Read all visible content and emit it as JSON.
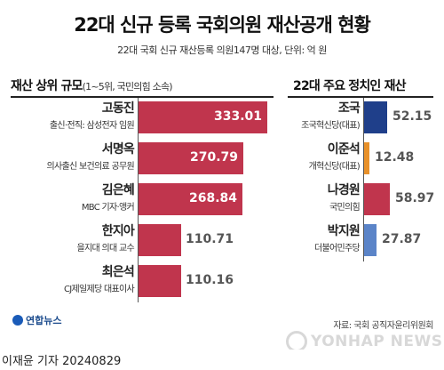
{
  "title": "22대 신규 등록 국회의원 재산공개 현황",
  "subtitle": "22대 국회 신규 재산등록 의원147명 대상, 단위: 억 원",
  "source": "자료: 국회 공직자윤리위원회",
  "logo": "연합뉴스",
  "watermark": "YONHAP NEWS",
  "credit": "이재윤 기자 20240829",
  "chart_data": [
    {
      "type": "bar",
      "orientation": "horizontal",
      "title": "재산 상위 규모",
      "title_note": "(1~5위, 국민의힘 소속)",
      "unit": "억 원",
      "color": "#c0354d",
      "categories": [
        "고동진",
        "서명옥",
        "김은혜",
        "한지아",
        "최은석"
      ],
      "descriptions": [
        "출신·전직: 삼성전자 임원",
        "의사출신 보건의료 공무원",
        "MBC 기자·앵커",
        "을지대 의대 교수",
        "CJ제일제당 대표이사"
      ],
      "values": [
        333.01,
        270.79,
        268.84,
        110.71,
        110.16
      ],
      "value_labels": [
        "333.01",
        "270.79",
        "268.84",
        "110.71",
        "110.16"
      ]
    },
    {
      "type": "bar",
      "orientation": "horizontal",
      "title": "22대 주요 정치인 재산",
      "unit": "억 원",
      "categories": [
        "조국",
        "이준석",
        "나경원",
        "박지원"
      ],
      "descriptions": [
        "조국혁신당(대표)",
        "개혁신당(대표)",
        "국민의힘",
        "더불어민주당"
      ],
      "values": [
        52.15,
        12.48,
        58.97,
        27.87
      ],
      "value_labels": [
        "52.15",
        "12.48",
        "58.97",
        "27.87"
      ],
      "colors": [
        "#1f3f8a",
        "#e8912a",
        "#c0354d",
        "#5b84c8"
      ]
    }
  ]
}
